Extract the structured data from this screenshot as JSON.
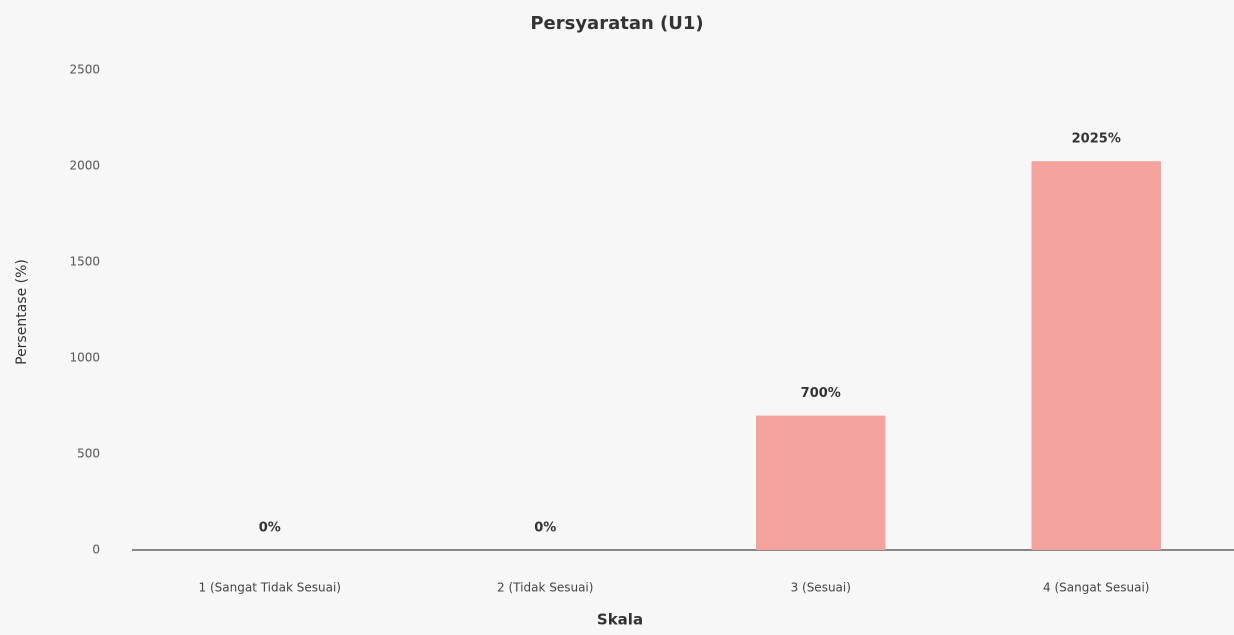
{
  "chart_data": {
    "type": "bar",
    "title": "Persyaratan (U1)",
    "xlabel": "Skala",
    "ylabel": "Persentase (%)",
    "categories": [
      "1 (Sangat Tidak Sesuai)",
      "2 (Tidak Sesuai)",
      "3 (Sesuai)",
      "4 (Sangat Sesuai)"
    ],
    "values": [
      0,
      0,
      700,
      2025
    ],
    "value_labels": [
      "0%",
      "0%",
      "700%",
      "2025%"
    ],
    "color": "#f4a29d",
    "ylim": [
      0,
      2500
    ],
    "yticks": [
      0,
      500,
      1000,
      1500,
      2000,
      2500
    ],
    "grid": false
  }
}
